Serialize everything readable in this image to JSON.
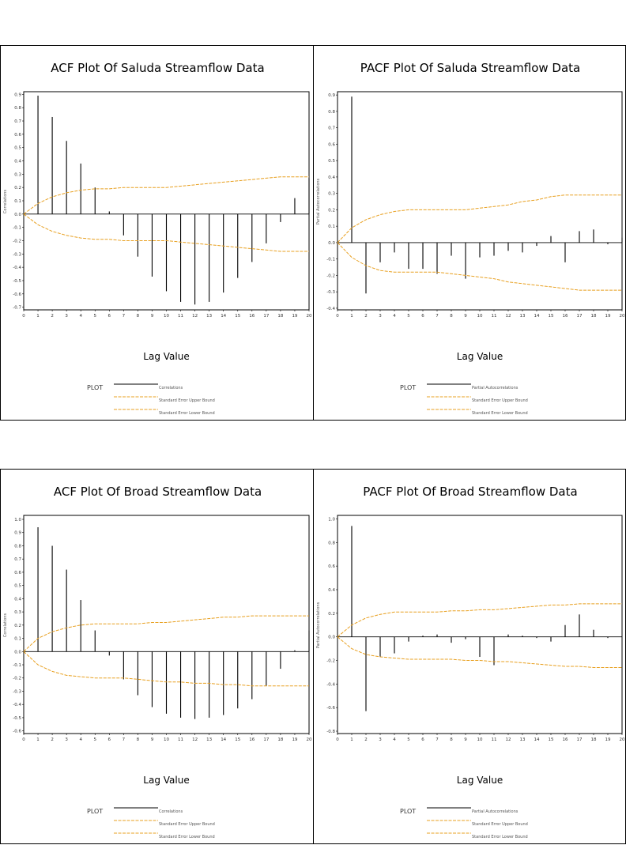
{
  "chart_data": [
    {
      "type": "bar",
      "title": "ACF Plot Of Saluda Streamflow Data",
      "xlabel": "Lag Value",
      "ylabel": "Correlations",
      "xlim": [
        0,
        20
      ],
      "ylim": [
        -0.72,
        0.92
      ],
      "x_ticks": [
        0,
        1,
        2,
        3,
        4,
        5,
        6,
        7,
        8,
        9,
        10,
        11,
        12,
        13,
        14,
        15,
        16,
        17,
        18,
        19,
        20
      ],
      "y_ticks": [
        0.9,
        0.8,
        0.7,
        0.6,
        0.5,
        0.4,
        0.3,
        0.2,
        0.1,
        0.0,
        -0.1,
        -0.2,
        -0.3,
        -0.4,
        -0.5,
        -0.6,
        -0.7
      ],
      "y_tick_labels": [
        "0.9",
        "0.8",
        "0.7",
        "0.6",
        "0.5",
        "0.4",
        "0.3",
        "0.2",
        "0.1",
        "0.0",
        "-0.1",
        "-0.2",
        "-0.3",
        "-0.4",
        "-0.5",
        "-0.6",
        "-0.7"
      ],
      "lags": [
        1,
        2,
        3,
        4,
        5,
        6,
        7,
        8,
        9,
        10,
        11,
        12,
        13,
        14,
        15,
        16,
        17,
        18,
        19,
        20
      ],
      "values": [
        0.89,
        0.73,
        0.55,
        0.38,
        0.2,
        0.02,
        -0.16,
        -0.32,
        -0.47,
        -0.58,
        -0.66,
        -0.68,
        -0.66,
        -0.59,
        -0.48,
        -0.36,
        -0.22,
        -0.06,
        0.12,
        0.27
      ],
      "upper_bound": [
        0,
        0.08,
        0.13,
        0.16,
        0.18,
        0.19,
        0.19,
        0.2,
        0.2,
        0.2,
        0.2,
        0.21,
        0.22,
        0.23,
        0.24,
        0.25,
        0.26,
        0.27,
        0.28,
        0.28,
        0.28
      ],
      "lower_bound": [
        0,
        -0.08,
        -0.13,
        -0.16,
        -0.18,
        -0.19,
        -0.19,
        -0.2,
        -0.2,
        -0.2,
        -0.2,
        -0.21,
        -0.22,
        -0.23,
        -0.24,
        -0.25,
        -0.26,
        -0.27,
        -0.28,
        -0.28,
        -0.28
      ],
      "legend_title": "PLOT",
      "legend": [
        "Correlations",
        "Standard Error Upper Bound",
        "Standard Error Lower Bound"
      ]
    },
    {
      "type": "bar",
      "title": "PACF Plot Of Saluda Streamflow Data",
      "xlabel": "Lag Value",
      "ylabel": "Partial Autocorrelations",
      "xlim": [
        0,
        20
      ],
      "ylim": [
        -0.41,
        0.92
      ],
      "x_ticks": [
        0,
        1,
        2,
        3,
        4,
        5,
        6,
        7,
        8,
        9,
        10,
        11,
        12,
        13,
        14,
        15,
        16,
        17,
        18,
        19,
        20
      ],
      "y_ticks": [
        0.9,
        0.8,
        0.7,
        0.6,
        0.5,
        0.4,
        0.3,
        0.2,
        0.1,
        0.0,
        -0.1,
        -0.2,
        -0.3,
        -0.4
      ],
      "y_tick_labels": [
        "0.9",
        "0.8",
        "0.7",
        "0.6",
        "0.5",
        "0.4",
        "0.3",
        "0.2",
        "0.1",
        "0.0",
        "-0.1",
        "-0.2",
        "-0.3",
        "-0.4"
      ],
      "lags": [
        1,
        2,
        3,
        4,
        5,
        6,
        7,
        8,
        9,
        10,
        11,
        12,
        13,
        14,
        15,
        16,
        17,
        18,
        19,
        20
      ],
      "values": [
        0.89,
        -0.31,
        -0.12,
        -0.06,
        -0.16,
        -0.16,
        -0.19,
        -0.08,
        -0.22,
        -0.09,
        -0.08,
        -0.05,
        -0.06,
        -0.02,
        0.04,
        -0.12,
        0.07,
        0.08,
        -0.01,
        0.03
      ],
      "upper_bound": [
        0,
        0.09,
        0.14,
        0.17,
        0.19,
        0.2,
        0.2,
        0.2,
        0.2,
        0.2,
        0.21,
        0.22,
        0.23,
        0.25,
        0.26,
        0.28,
        0.29,
        0.29,
        0.29,
        0.29,
        0.29
      ],
      "lower_bound": [
        0,
        -0.09,
        -0.14,
        -0.17,
        -0.18,
        -0.18,
        -0.18,
        -0.18,
        -0.19,
        -0.2,
        -0.21,
        -0.22,
        -0.24,
        -0.25,
        -0.26,
        -0.27,
        -0.28,
        -0.29,
        -0.29,
        -0.29,
        -0.29
      ],
      "legend_title": "PLOT",
      "legend": [
        "Partial Autocorrelations",
        "Standard Error Upper Bound",
        "Standard Error Lower Bound"
      ]
    },
    {
      "type": "bar",
      "title": "ACF Plot Of Broad Streamflow Data",
      "xlabel": "Lag Value",
      "ylabel": "Correlations",
      "xlim": [
        0,
        20
      ],
      "ylim": [
        -0.62,
        1.03
      ],
      "x_ticks": [
        0,
        1,
        2,
        3,
        4,
        5,
        6,
        7,
        8,
        9,
        10,
        11,
        12,
        13,
        14,
        15,
        16,
        17,
        18,
        19,
        20
      ],
      "y_ticks": [
        1.0,
        0.9,
        0.8,
        0.7,
        0.6,
        0.5,
        0.4,
        0.3,
        0.2,
        0.1,
        0.0,
        -0.1,
        -0.2,
        -0.3,
        -0.4,
        -0.5,
        -0.6
      ],
      "y_tick_labels": [
        "1.0",
        "0.9",
        "0.8",
        "0.7",
        "0.6",
        "0.5",
        "0.4",
        "0.3",
        "0.2",
        "0.1",
        "0.0",
        "-0.1",
        "-0.2",
        "-0.3",
        "-0.4",
        "-0.5",
        "-0.6"
      ],
      "lags": [
        1,
        2,
        3,
        4,
        5,
        6,
        7,
        8,
        9,
        10,
        11,
        12,
        13,
        14,
        15,
        16,
        17,
        18,
        19,
        20
      ],
      "values": [
        0.94,
        0.8,
        0.62,
        0.39,
        0.16,
        -0.03,
        -0.21,
        -0.33,
        -0.42,
        -0.47,
        -0.5,
        -0.51,
        -0.5,
        -0.48,
        -0.43,
        -0.36,
        -0.26,
        -0.13,
        0.01,
        0.16
      ],
      "upper_bound": [
        0,
        0.1,
        0.15,
        0.18,
        0.2,
        0.21,
        0.21,
        0.21,
        0.21,
        0.22,
        0.22,
        0.23,
        0.24,
        0.25,
        0.26,
        0.26,
        0.27,
        0.27,
        0.27,
        0.27,
        0.27
      ],
      "lower_bound": [
        0,
        -0.1,
        -0.15,
        -0.18,
        -0.19,
        -0.2,
        -0.2,
        -0.2,
        -0.21,
        -0.22,
        -0.23,
        -0.23,
        -0.24,
        -0.24,
        -0.25,
        -0.25,
        -0.26,
        -0.26,
        -0.26,
        -0.26,
        -0.26
      ],
      "legend_title": "PLOT",
      "legend": [
        "Correlations",
        "Standard Error Upper Bound",
        "Standard Error Lower Bound"
      ]
    },
    {
      "type": "bar",
      "title": "PACF Plot Of Broad Streamflow Data",
      "xlabel": "Lag Value",
      "ylabel": "Partial Autocorrelations",
      "xlim": [
        0,
        20
      ],
      "ylim": [
        -0.82,
        1.03
      ],
      "x_ticks": [
        0,
        1,
        2,
        3,
        4,
        5,
        6,
        7,
        8,
        9,
        10,
        11,
        12,
        13,
        14,
        15,
        16,
        17,
        18,
        19,
        20
      ],
      "y_ticks": [
        1.0,
        0.8,
        0.6,
        0.4,
        0.2,
        0.0,
        -0.2,
        -0.4,
        -0.6,
        -0.8
      ],
      "y_tick_labels": [
        "1.0",
        "0.8",
        "0.6",
        "0.4",
        "0.2",
        "0.0",
        "-0.2",
        "-0.4",
        "-0.6",
        "-0.8"
      ],
      "lags": [
        1,
        2,
        3,
        4,
        5,
        6,
        7,
        8,
        9,
        10,
        11,
        12,
        13,
        14,
        15,
        16,
        17,
        18,
        19,
        20
      ],
      "values": [
        0.94,
        -0.63,
        -0.17,
        -0.14,
        -0.04,
        0.01,
        0.02,
        -0.05,
        -0.02,
        -0.17,
        -0.24,
        0.02,
        0.01,
        -0.01,
        -0.04,
        0.1,
        0.19,
        0.06,
        -0.01,
        0.0
      ],
      "upper_bound": [
        0,
        0.1,
        0.16,
        0.19,
        0.21,
        0.21,
        0.21,
        0.21,
        0.22,
        0.22,
        0.23,
        0.23,
        0.24,
        0.25,
        0.26,
        0.27,
        0.27,
        0.28,
        0.28,
        0.28,
        0.28
      ],
      "lower_bound": [
        0,
        -0.1,
        -0.15,
        -0.17,
        -0.18,
        -0.19,
        -0.19,
        -0.19,
        -0.19,
        -0.2,
        -0.2,
        -0.21,
        -0.21,
        -0.22,
        -0.23,
        -0.24,
        -0.25,
        -0.25,
        -0.26,
        -0.26,
        -0.26
      ],
      "legend_title": "PLOT",
      "legend": [
        "Partial Autocorrelations",
        "Standard Error Upper Bound",
        "Standard Error Lower Bound"
      ]
    }
  ],
  "colors": {
    "bars": "#000000",
    "bounds": "#e8a020",
    "frame": "#000000"
  }
}
